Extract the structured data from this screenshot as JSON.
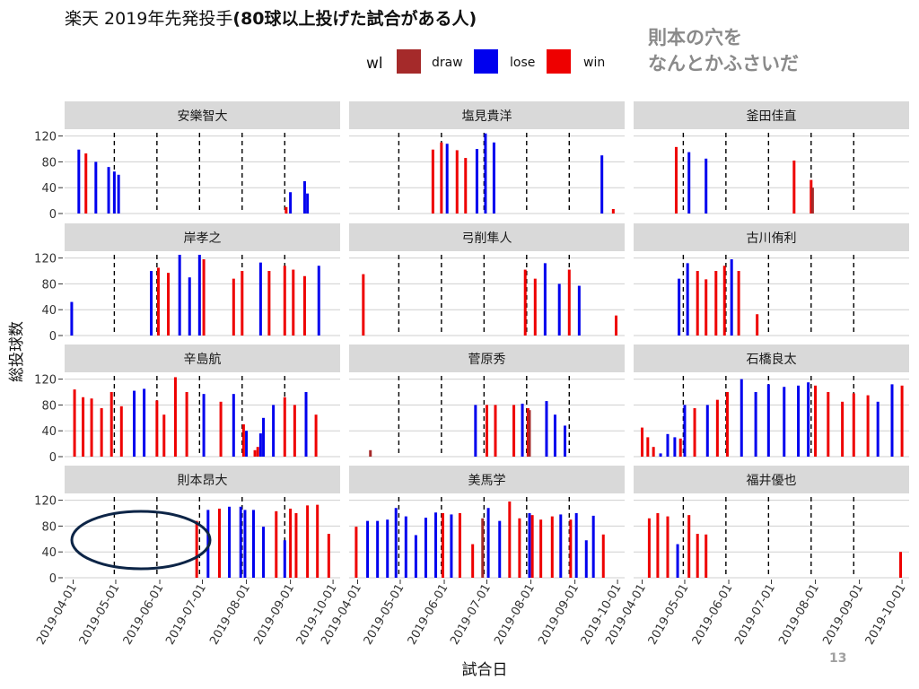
{
  "title_part1": "楽天  2019年先発投手",
  "title_part2": "(80球以上投げた試合がある人)",
  "annotation": [
    "則本の穴を",
    "なんとかふさいだ"
  ],
  "page_number": "13",
  "colors": {
    "draw": "#A52A2A",
    "lose": "#0000EE",
    "win": "#EE0000",
    "highlight": "#0d2547",
    "strip": "#d9d9d9",
    "grid": "#cfcfcf"
  },
  "chart_data": {
    "type": "bar",
    "title": "楽天  2019年先発投手(80球以上投げた試合がある人)",
    "xlabel": "試合日",
    "ylabel": "総投球数",
    "ylim": [
      0,
      125
    ],
    "yticks": [
      0,
      40,
      80,
      120
    ],
    "xlim": [
      "2019-03-26",
      "2019-10-06"
    ],
    "xticks": [
      "2019-04-01",
      "2019-05-01",
      "2019-06-01",
      "2019-07-01",
      "2019-08-01",
      "2019-09-01",
      "2019-10-01"
    ],
    "vlines": [
      "2019-04-30",
      "2019-05-30",
      "2019-06-29",
      "2019-07-29",
      "2019-08-28"
    ],
    "legend": {
      "title": "wl",
      "position": "top",
      "entries": [
        "draw",
        "lose",
        "win"
      ]
    },
    "panels": [
      {
        "name": "安樂智大",
        "games": [
          [
            "2019-04-05",
            99,
            "lose"
          ],
          [
            "2019-04-10",
            93,
            "win"
          ],
          [
            "2019-04-17",
            80,
            "lose"
          ],
          [
            "2019-04-26",
            72,
            "lose"
          ],
          [
            "2019-04-30",
            65,
            "lose"
          ],
          [
            "2019-05-03",
            60,
            "lose"
          ],
          [
            "2019-08-29",
            10,
            "win"
          ],
          [
            "2019-09-01",
            33,
            "lose"
          ],
          [
            "2019-09-11",
            50,
            "lose"
          ],
          [
            "2019-09-13",
            31,
            "lose"
          ]
        ]
      },
      {
        "name": "塩見貴洋",
        "games": [
          [
            "2019-05-24",
            99,
            "win"
          ],
          [
            "2019-05-30",
            110,
            "win"
          ],
          [
            "2019-06-03",
            108,
            "lose"
          ],
          [
            "2019-06-10",
            98,
            "win"
          ],
          [
            "2019-06-16",
            86,
            "win"
          ],
          [
            "2019-06-24",
            100,
            "lose"
          ],
          [
            "2019-06-30",
            124,
            "lose"
          ],
          [
            "2019-07-06",
            110,
            "lose"
          ],
          [
            "2019-09-20",
            90,
            "lose"
          ],
          [
            "2019-09-28",
            7,
            "win"
          ]
        ]
      },
      {
        "name": "釜田佳直",
        "games": [
          [
            "2019-04-25",
            103,
            "win"
          ],
          [
            "2019-05-04",
            95,
            "lose"
          ],
          [
            "2019-05-16",
            85,
            "lose"
          ],
          [
            "2019-07-17",
            82,
            "win"
          ],
          [
            "2019-07-29",
            52,
            "win"
          ],
          [
            "2019-07-30",
            40,
            "draw"
          ]
        ]
      },
      {
        "name": "岸孝之",
        "games": [
          [
            "2019-03-31",
            52,
            "lose"
          ],
          [
            "2019-05-26",
            100,
            "lose"
          ],
          [
            "2019-05-31",
            105,
            "win"
          ],
          [
            "2019-06-07",
            97,
            "win"
          ],
          [
            "2019-06-15",
            125,
            "lose"
          ],
          [
            "2019-06-22",
            90,
            "lose"
          ],
          [
            "2019-06-29",
            125,
            "lose"
          ],
          [
            "2019-07-02",
            118,
            "win"
          ],
          [
            "2019-07-23",
            88,
            "win"
          ],
          [
            "2019-07-29",
            100,
            "win"
          ],
          [
            "2019-08-11",
            113,
            "lose"
          ],
          [
            "2019-08-17",
            100,
            "win"
          ],
          [
            "2019-08-28",
            108,
            "win"
          ],
          [
            "2019-09-03",
            102,
            "win"
          ],
          [
            "2019-09-11",
            92,
            "win"
          ],
          [
            "2019-09-21",
            108,
            "lose"
          ]
        ]
      },
      {
        "name": "弓削隼人",
        "games": [
          [
            "2019-04-05",
            95,
            "win"
          ],
          [
            "2019-07-28",
            102,
            "win"
          ],
          [
            "2019-08-04",
            88,
            "win"
          ],
          [
            "2019-08-11",
            112,
            "lose"
          ],
          [
            "2019-08-21",
            80,
            "lose"
          ],
          [
            "2019-08-28",
            102,
            "win"
          ],
          [
            "2019-09-04",
            77,
            "lose"
          ],
          [
            "2019-09-30",
            31,
            "win"
          ]
        ]
      },
      {
        "name": "古川侑利",
        "games": [
          [
            "2019-04-27",
            88,
            "lose"
          ],
          [
            "2019-05-03",
            112,
            "lose"
          ],
          [
            "2019-05-10",
            100,
            "win"
          ],
          [
            "2019-05-16",
            87,
            "win"
          ],
          [
            "2019-05-23",
            100,
            "win"
          ],
          [
            "2019-05-29",
            108,
            "win"
          ],
          [
            "2019-06-03",
            118,
            "lose"
          ],
          [
            "2019-06-08",
            100,
            "win"
          ],
          [
            "2019-06-21",
            33,
            "win"
          ]
        ]
      },
      {
        "name": "辛島航",
        "games": [
          [
            "2019-04-02",
            104,
            "win"
          ],
          [
            "2019-04-08",
            92,
            "win"
          ],
          [
            "2019-04-14",
            90,
            "win"
          ],
          [
            "2019-04-21",
            75,
            "win"
          ],
          [
            "2019-04-28",
            100,
            "win"
          ],
          [
            "2019-05-05",
            78,
            "win"
          ],
          [
            "2019-05-14",
            102,
            "lose"
          ],
          [
            "2019-05-21",
            105,
            "lose"
          ],
          [
            "2019-05-30",
            87,
            "win"
          ],
          [
            "2019-06-04",
            65,
            "win"
          ],
          [
            "2019-06-12",
            123,
            "win"
          ],
          [
            "2019-06-20",
            100,
            "win"
          ],
          [
            "2019-07-02",
            97,
            "lose"
          ],
          [
            "2019-07-14",
            85,
            "win"
          ],
          [
            "2019-07-23",
            97,
            "lose"
          ],
          [
            "2019-07-30",
            50,
            "win"
          ],
          [
            "2019-08-01",
            40,
            "lose"
          ],
          [
            "2019-08-07",
            10,
            "win"
          ],
          [
            "2019-08-09",
            15,
            "win"
          ],
          [
            "2019-08-11",
            36,
            "lose"
          ],
          [
            "2019-08-13",
            60,
            "lose"
          ],
          [
            "2019-08-20",
            80,
            "lose"
          ],
          [
            "2019-08-28",
            92,
            "win"
          ],
          [
            "2019-09-04",
            80,
            "win"
          ],
          [
            "2019-09-12",
            100,
            "lose"
          ],
          [
            "2019-09-19",
            65,
            "win"
          ]
        ]
      },
      {
        "name": "菅原秀",
        "games": [
          [
            "2019-04-10",
            10,
            "draw"
          ],
          [
            "2019-06-23",
            80,
            "lose"
          ],
          [
            "2019-07-01",
            80,
            "win"
          ],
          [
            "2019-07-07",
            80,
            "win"
          ],
          [
            "2019-07-20",
            80,
            "win"
          ],
          [
            "2019-07-26",
            82,
            "lose"
          ],
          [
            "2019-07-30",
            75,
            "win"
          ],
          [
            "2019-07-31",
            72,
            "draw"
          ],
          [
            "2019-08-12",
            86,
            "lose"
          ],
          [
            "2019-08-18",
            65,
            "lose"
          ],
          [
            "2019-08-25",
            48,
            "lose"
          ]
        ]
      },
      {
        "name": "石橋良太",
        "games": [
          [
            "2019-04-01",
            45,
            "win"
          ],
          [
            "2019-04-05",
            30,
            "win"
          ],
          [
            "2019-04-09",
            15,
            "win"
          ],
          [
            "2019-04-14",
            5,
            "lose"
          ],
          [
            "2019-04-19",
            35,
            "lose"
          ],
          [
            "2019-04-24",
            30,
            "lose"
          ],
          [
            "2019-04-28",
            28,
            "win"
          ],
          [
            "2019-05-01",
            80,
            "lose"
          ],
          [
            "2019-05-08",
            75,
            "win"
          ],
          [
            "2019-05-17",
            80,
            "lose"
          ],
          [
            "2019-05-24",
            88,
            "win"
          ],
          [
            "2019-05-31",
            100,
            "win"
          ],
          [
            "2019-06-10",
            120,
            "lose"
          ],
          [
            "2019-06-20",
            100,
            "lose"
          ],
          [
            "2019-06-29",
            112,
            "lose"
          ],
          [
            "2019-07-10",
            108,
            "lose"
          ],
          [
            "2019-07-20",
            110,
            "lose"
          ],
          [
            "2019-07-27",
            115,
            "lose"
          ],
          [
            "2019-08-01",
            110,
            "win"
          ],
          [
            "2019-08-10",
            100,
            "win"
          ],
          [
            "2019-08-20",
            85,
            "win"
          ],
          [
            "2019-08-28",
            98,
            "win"
          ],
          [
            "2019-09-07",
            95,
            "win"
          ],
          [
            "2019-09-14",
            85,
            "lose"
          ],
          [
            "2019-09-24",
            112,
            "lose"
          ],
          [
            "2019-10-01",
            110,
            "win"
          ]
        ]
      },
      {
        "name": "則本昂大",
        "games": [
          [
            "2019-06-27",
            88,
            "win"
          ],
          [
            "2019-07-05",
            105,
            "lose"
          ],
          [
            "2019-07-13",
            107,
            "win"
          ],
          [
            "2019-07-20",
            110,
            "lose"
          ],
          [
            "2019-07-28",
            110,
            "lose"
          ],
          [
            "2019-07-31",
            105,
            "lose"
          ],
          [
            "2019-08-06",
            105,
            "lose"
          ],
          [
            "2019-08-13",
            79,
            "lose"
          ],
          [
            "2019-08-22",
            103,
            "win"
          ],
          [
            "2019-08-28",
            58,
            "lose"
          ],
          [
            "2019-09-01",
            107,
            "win"
          ],
          [
            "2019-09-05",
            100,
            "win"
          ],
          [
            "2019-09-13",
            112,
            "win"
          ],
          [
            "2019-09-20",
            113,
            "win"
          ],
          [
            "2019-09-28",
            68,
            "win"
          ]
        ]
      },
      {
        "name": "美馬学",
        "games": [
          [
            "2019-03-31",
            79,
            "win"
          ],
          [
            "2019-04-08",
            88,
            "lose"
          ],
          [
            "2019-04-15",
            88,
            "lose"
          ],
          [
            "2019-04-22",
            90,
            "lose"
          ],
          [
            "2019-04-28",
            108,
            "lose"
          ],
          [
            "2019-05-05",
            95,
            "lose"
          ],
          [
            "2019-05-12",
            66,
            "lose"
          ],
          [
            "2019-05-19",
            93,
            "lose"
          ],
          [
            "2019-05-26",
            101,
            "lose"
          ],
          [
            "2019-05-31",
            100,
            "win"
          ],
          [
            "2019-06-06",
            98,
            "lose"
          ],
          [
            "2019-06-12",
            100,
            "win"
          ],
          [
            "2019-06-21",
            52,
            "win"
          ],
          [
            "2019-06-28",
            92,
            "draw"
          ],
          [
            "2019-07-02",
            108,
            "lose"
          ],
          [
            "2019-07-10",
            88,
            "lose"
          ],
          [
            "2019-07-17",
            118,
            "win"
          ],
          [
            "2019-07-24",
            92,
            "win"
          ],
          [
            "2019-07-31",
            100,
            "lose"
          ],
          [
            "2019-08-02",
            97,
            "win"
          ],
          [
            "2019-08-08",
            90,
            "win"
          ],
          [
            "2019-08-16",
            95,
            "win"
          ],
          [
            "2019-08-22",
            98,
            "lose"
          ],
          [
            "2019-08-29",
            90,
            "win"
          ],
          [
            "2019-09-02",
            100,
            "lose"
          ],
          [
            "2019-09-09",
            58,
            "lose"
          ],
          [
            "2019-09-14",
            96,
            "lose"
          ],
          [
            "2019-09-21",
            67,
            "win"
          ]
        ]
      },
      {
        "name": "福井優也",
        "games": [
          [
            "2019-04-06",
            92,
            "win"
          ],
          [
            "2019-04-12",
            100,
            "win"
          ],
          [
            "2019-04-19",
            95,
            "win"
          ],
          [
            "2019-04-26",
            52,
            "lose"
          ],
          [
            "2019-05-04",
            97,
            "win"
          ],
          [
            "2019-05-10",
            68,
            "win"
          ],
          [
            "2019-05-16",
            67,
            "win"
          ],
          [
            "2019-09-30",
            40,
            "win"
          ]
        ]
      }
    ]
  }
}
